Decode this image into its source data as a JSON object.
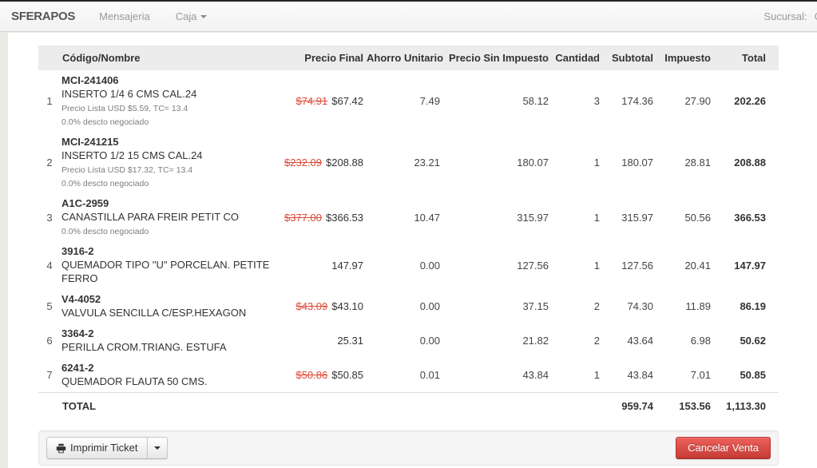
{
  "navbar": {
    "brand": "SFERAPOS",
    "mensajeria": "Mensajeria",
    "caja": "Caja",
    "sucursal_label": "Sucursal:",
    "sucursal_value": "C"
  },
  "table": {
    "headers": [
      "Código/Nombre",
      "Precio Final",
      "Ahorro Unitario",
      "Precio Sin Impuesto",
      "Cantidad",
      "Subtotal",
      "Impuesto",
      "Total"
    ],
    "rows": [
      {
        "num": "1",
        "code": "MCI-241406",
        "name": "INSERTO 1/4 6 CMS CAL.24",
        "price_list": "Precio Lista USD $5.59, TC= 13.4",
        "discount_note": "0.0% descto negociado",
        "price_old": "$74.91",
        "price_final": "$67.42",
        "ahorro": "7.49",
        "sin_impuesto": "58.12",
        "cantidad": "3",
        "subtotal": "174.36",
        "impuesto": "27.90",
        "total": "202.26"
      },
      {
        "num": "2",
        "code": "MCI-241215",
        "name": "INSERTO 1/2 15 CMS CAL.24",
        "price_list": "Precio Lista USD $17.32, TC= 13.4",
        "discount_note": "0.0% descto negociado",
        "price_old": "$232.09",
        "price_final": "$208.88",
        "ahorro": "23.21",
        "sin_impuesto": "180.07",
        "cantidad": "1",
        "subtotal": "180.07",
        "impuesto": "28.81",
        "total": "208.88"
      },
      {
        "num": "3",
        "code": "A1C-2959",
        "name": "CANASTILLA PARA FREIR PETIT CO",
        "price_list": null,
        "discount_note": "0.0% descto negociado",
        "price_old": "$377.00",
        "price_final": "$366.53",
        "ahorro": "10.47",
        "sin_impuesto": "315.97",
        "cantidad": "1",
        "subtotal": "315.97",
        "impuesto": "50.56",
        "total": "366.53"
      },
      {
        "num": "4",
        "code": "3916-2",
        "name": "QUEMADOR TIPO \"U\" PORCELAN. PETITE FERRO",
        "price_list": null,
        "discount_note": null,
        "price_old": null,
        "price_final": "147.97",
        "ahorro": "0.00",
        "sin_impuesto": "127.56",
        "cantidad": "1",
        "subtotal": "127.56",
        "impuesto": "20.41",
        "total": "147.97"
      },
      {
        "num": "5",
        "code": "V4-4052",
        "name": "VALVULA SENCILLA C/ESP.HEXAGON",
        "price_list": null,
        "discount_note": null,
        "price_old": "$43.09",
        "price_final": "$43.10",
        "ahorro": "0.00",
        "sin_impuesto": "37.15",
        "cantidad": "2",
        "subtotal": "74.30",
        "impuesto": "11.89",
        "total": "86.19"
      },
      {
        "num": "6",
        "code": "3364-2",
        "name": "PERILLA CROM.TRIANG. ESTUFA",
        "price_list": null,
        "discount_note": null,
        "price_old": null,
        "price_final": "25.31",
        "ahorro": "0.00",
        "sin_impuesto": "21.82",
        "cantidad": "2",
        "subtotal": "43.64",
        "impuesto": "6.98",
        "total": "50.62"
      },
      {
        "num": "7",
        "code": "6241-2",
        "name": "QUEMADOR FLAUTA 50 CMS.",
        "price_list": null,
        "discount_note": null,
        "price_old": "$50.86",
        "price_final": "$50.85",
        "ahorro": "0.01",
        "sin_impuesto": "43.84",
        "cantidad": "1",
        "subtotal": "43.84",
        "impuesto": "7.01",
        "total": "50.85"
      }
    ],
    "total_row": {
      "label": "TOTAL",
      "subtotal": "959.74",
      "impuesto": "153.56",
      "total": "1,113.30"
    }
  },
  "footer": {
    "print_button": "Imprimir Ticket",
    "cancel_button": "Cancelar Venta"
  },
  "colors": {
    "strike_red": "#dd4b39",
    "danger_button_top": "#ee5f5b",
    "danger_button_bottom": "#c43c35",
    "table_header_bg": "#ececec"
  }
}
